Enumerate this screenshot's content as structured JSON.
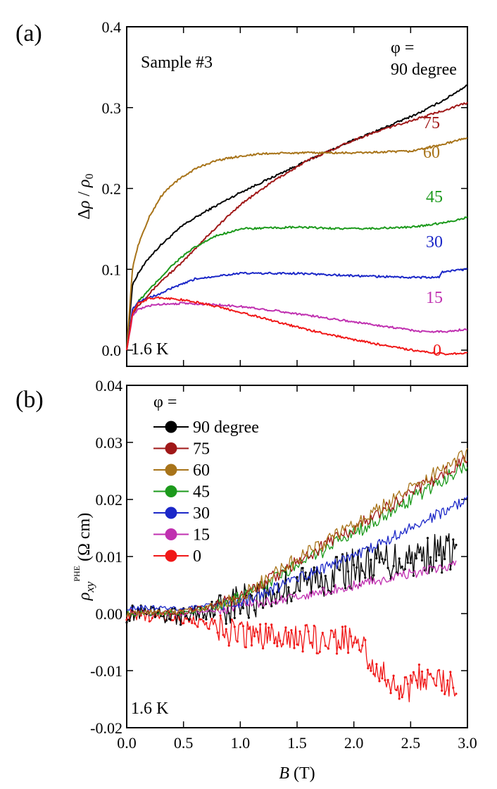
{
  "chart_data": [
    {
      "panel": "(a)",
      "type": "line",
      "xlabel": "B (T)",
      "ylabel": "Δρ / ρ0",
      "ylabel_parts": {
        "delta": "Δ",
        "rho": "ρ",
        "sep": " / ",
        "rho0_base": "ρ",
        "rho0_sub": "0"
      },
      "xlim": [
        0.0,
        3.0
      ],
      "ylim": [
        -0.02,
        0.4
      ],
      "xticks": [
        0.0,
        0.5,
        1.0,
        1.5,
        2.0,
        2.5,
        3.0
      ],
      "yticks": [
        0.0,
        0.1,
        0.2,
        0.3,
        0.4
      ],
      "ytick_labels": [
        "0.0",
        "0.1",
        "0.2",
        "0.3",
        "0.4"
      ],
      "annotation_sample": "Sample #3",
      "annotation_temp": "1.6 K",
      "phi_label_top": "φ =",
      "series": [
        {
          "name": "90 degree",
          "label": "90 degree",
          "color": "#000000",
          "x": [
            0,
            0.05,
            0.1,
            0.2,
            0.3,
            0.5,
            0.7,
            1.0,
            1.3,
            1.6,
            2.0,
            2.3,
            2.6,
            2.8,
            3.0
          ],
          "y": [
            0,
            0.08,
            0.095,
            0.115,
            0.13,
            0.155,
            0.172,
            0.195,
            0.215,
            0.235,
            0.26,
            0.277,
            0.295,
            0.31,
            0.328
          ]
        },
        {
          "name": "75",
          "label": "75",
          "color": "#a01818",
          "x": [
            0,
            0.05,
            0.1,
            0.2,
            0.3,
            0.5,
            0.7,
            1.0,
            1.3,
            1.6,
            2.0,
            2.3,
            2.6,
            2.8,
            3.0
          ],
          "y": [
            0,
            0.045,
            0.055,
            0.07,
            0.085,
            0.11,
            0.14,
            0.18,
            0.21,
            0.235,
            0.26,
            0.275,
            0.288,
            0.297,
            0.306
          ]
        },
        {
          "name": "60",
          "label": "60",
          "color": "#a8741a",
          "x": [
            0,
            0.05,
            0.1,
            0.2,
            0.3,
            0.4,
            0.5,
            0.6,
            0.7,
            0.8,
            1.0,
            1.2,
            1.5,
            2.0,
            2.5,
            2.8,
            3.0
          ],
          "y": [
            0,
            0.1,
            0.13,
            0.165,
            0.19,
            0.205,
            0.215,
            0.224,
            0.23,
            0.235,
            0.24,
            0.243,
            0.244,
            0.244,
            0.246,
            0.255,
            0.263
          ]
        },
        {
          "name": "45",
          "label": "45",
          "color": "#1c9a1c",
          "x": [
            0,
            0.05,
            0.1,
            0.2,
            0.3,
            0.4,
            0.5,
            0.6,
            0.7,
            0.8,
            1.0,
            1.5,
            2.0,
            2.5,
            2.8,
            3.0
          ],
          "y": [
            0,
            0.045,
            0.06,
            0.075,
            0.09,
            0.105,
            0.117,
            0.127,
            0.135,
            0.142,
            0.15,
            0.152,
            0.15,
            0.152,
            0.158,
            0.164
          ]
        },
        {
          "name": "30",
          "label": "30",
          "color": "#1c28c8",
          "x": [
            0,
            0.05,
            0.1,
            0.2,
            0.3,
            0.4,
            0.5,
            0.6,
            0.8,
            1.0,
            1.5,
            2.0,
            2.5,
            2.75,
            2.78,
            3.0
          ],
          "y": [
            0,
            0.05,
            0.06,
            0.065,
            0.07,
            0.077,
            0.082,
            0.088,
            0.092,
            0.095,
            0.095,
            0.092,
            0.09,
            0.09,
            0.097,
            0.1
          ]
        },
        {
          "name": "15",
          "label": "15",
          "color": "#c030b0",
          "x": [
            0,
            0.05,
            0.1,
            0.2,
            0.3,
            0.5,
            0.7,
            1.0,
            1.3,
            1.6,
            2.0,
            2.3,
            2.6,
            2.8,
            3.0
          ],
          "y": [
            0,
            0.042,
            0.05,
            0.055,
            0.057,
            0.058,
            0.057,
            0.054,
            0.049,
            0.043,
            0.035,
            0.029,
            0.023,
            0.023,
            0.026
          ]
        },
        {
          "name": "0",
          "label": "0",
          "color": "#f01818",
          "x": [
            0,
            0.05,
            0.1,
            0.2,
            0.3,
            0.5,
            0.7,
            1.0,
            1.3,
            1.6,
            2.0,
            2.3,
            2.6,
            2.8,
            3.0
          ],
          "y": [
            0,
            0.045,
            0.058,
            0.064,
            0.065,
            0.062,
            0.057,
            0.047,
            0.036,
            0.025,
            0.013,
            0.005,
            -0.002,
            -0.005,
            -0.003
          ]
        }
      ]
    },
    {
      "panel": "(b)",
      "type": "line",
      "xlabel": "B (T)",
      "xlabel_parts": {
        "var": "B",
        "unit": " (T)"
      },
      "ylabel": "ρxy PHE (Ω cm)",
      "ylabel_parts": {
        "rho": "ρ",
        "sub": "xy",
        "sup": "PHE",
        "unit": " (Ω cm)"
      },
      "xlim": [
        0.0,
        3.0
      ],
      "ylim": [
        -0.02,
        0.04
      ],
      "xticks": [
        0.0,
        0.5,
        1.0,
        1.5,
        2.0,
        2.5,
        3.0
      ],
      "xtick_labels": [
        "0.0",
        "0.5",
        "1.0",
        "1.5",
        "2.0",
        "2.5",
        "3.0"
      ],
      "yticks": [
        -0.02,
        -0.01,
        0.0,
        0.01,
        0.02,
        0.03,
        0.04
      ],
      "ytick_labels": [
        "-0.02",
        "-0.01",
        "0.00",
        "0.01",
        "0.02",
        "0.03",
        "0.04"
      ],
      "annotation_temp": "1.6 K",
      "legend_title": "φ =",
      "legend_position": "top-left",
      "series": [
        {
          "name": "90 degree",
          "color": "#000000",
          "noise": 0.0035,
          "markers": true,
          "x": [
            0,
            0.5,
            0.8,
            1.0,
            1.5,
            2.0,
            2.5,
            2.9
          ],
          "y": [
            0,
            -0.0005,
            0.001,
            0.002,
            0.005,
            0.008,
            0.01,
            0.011
          ]
        },
        {
          "name": "75",
          "color": "#a01818",
          "noise": 0.0012,
          "markers": false,
          "x": [
            0,
            0.5,
            0.8,
            1.0,
            1.5,
            2.0,
            2.5,
            3.0
          ],
          "y": [
            0,
            0.0003,
            0.0015,
            0.003,
            0.009,
            0.015,
            0.021,
            0.027
          ]
        },
        {
          "name": "60",
          "color": "#a8741a",
          "noise": 0.0013,
          "markers": false,
          "x": [
            0,
            0.5,
            0.8,
            1.0,
            1.5,
            2.0,
            2.5,
            3.0
          ],
          "y": [
            0,
            0.0003,
            0.0015,
            0.003,
            0.0095,
            0.0155,
            0.022,
            0.028
          ]
        },
        {
          "name": "45",
          "color": "#1c9a1c",
          "noise": 0.0012,
          "markers": false,
          "x": [
            0,
            0.5,
            0.8,
            1.0,
            1.5,
            2.0,
            2.5,
            3.0
          ],
          "y": [
            0,
            0.0003,
            0.0013,
            0.0028,
            0.0085,
            0.014,
            0.02,
            0.026
          ]
        },
        {
          "name": "30",
          "color": "#1c28c8",
          "noise": 0.001,
          "markers": false,
          "x": [
            0,
            0.5,
            0.8,
            1.0,
            1.5,
            2.0,
            2.5,
            3.0
          ],
          "y": [
            0.001,
            0.001,
            0.0015,
            0.002,
            0.006,
            0.01,
            0.015,
            0.02
          ]
        },
        {
          "name": "15",
          "color": "#c030b0",
          "noise": 0.0009,
          "markers": false,
          "x": [
            0,
            0.5,
            0.8,
            1.0,
            1.5,
            2.0,
            2.5,
            2.9
          ],
          "y": [
            0,
            0,
            0.0005,
            0.0015,
            0.003,
            0.005,
            0.007,
            0.0085
          ]
        },
        {
          "name": "0",
          "color": "#f01818",
          "noise": 0.0025,
          "markers": true,
          "x": [
            0,
            0.4,
            0.7,
            0.9,
            1.2,
            1.5,
            1.8,
            2.0,
            2.2,
            2.4,
            2.6,
            2.9
          ],
          "y": [
            0,
            -0.0005,
            -0.0015,
            -0.0035,
            -0.004,
            -0.004,
            -0.005,
            -0.0045,
            -0.009,
            -0.0145,
            -0.011,
            -0.0125
          ]
        }
      ]
    }
  ]
}
